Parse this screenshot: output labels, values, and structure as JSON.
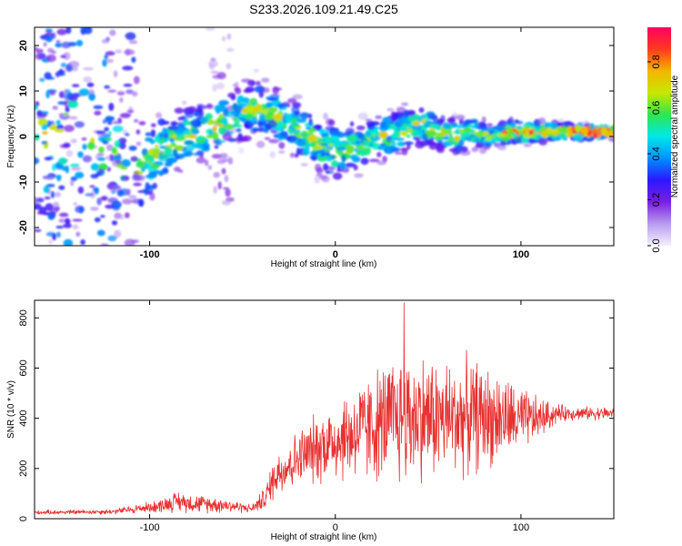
{
  "title": "S233.2026.109.21.49.C25",
  "chart_data": [
    {
      "type": "heatmap",
      "xlabel": "Height of straight line (km)",
      "ylabel": "Frequency (Hz)",
      "xlim": [
        -162,
        150
      ],
      "ylim": [
        -24,
        24
      ],
      "x_ticks": [
        -100,
        0,
        100
      ],
      "y_ticks": [
        -20,
        -10,
        0,
        10,
        20
      ],
      "colorbar": {
        "label": "Normalized spectral amplitude",
        "range": [
          0,
          0.95
        ],
        "ticks": [
          0.0,
          0.2,
          0.4,
          0.6,
          0.8
        ],
        "stops": [
          "#f4f0ff",
          "#b99cf0",
          "#7a1fe0",
          "#2b18ff",
          "#0090ff",
          "#00e8e8",
          "#2ee64e",
          "#c8e800",
          "#f4b400",
          "#ff3a1e",
          "#ff0060"
        ]
      },
      "ridge": {
        "x": [
          -162,
          -140,
          -120,
          -105,
          -95,
          -80,
          -65,
          -55,
          -45,
          -35,
          -25,
          -15,
          -5,
          5,
          15,
          25,
          35,
          45,
          55,
          65,
          75,
          85,
          95,
          105,
          115,
          125,
          140,
          150
        ],
        "freq_hz": [
          0,
          0,
          -3,
          -7,
          -3,
          0,
          2,
          4,
          6,
          5,
          3,
          0,
          -3,
          -3,
          -2,
          0,
          1,
          3,
          1,
          0,
          1,
          0,
          1,
          1,
          1,
          1,
          1,
          1
        ],
        "width_hz": [
          16,
          14,
          10,
          8,
          6,
          5,
          5,
          5,
          5,
          5,
          5,
          5,
          5,
          5,
          4,
          4,
          4,
          4,
          3,
          3,
          3,
          2,
          2,
          2,
          1.5,
          1.5,
          1.2,
          1.2
        ]
      }
    },
    {
      "type": "line",
      "xlabel": "Height of straight line (km)",
      "ylabel": "SNR (10 * v/v)",
      "xlim": [
        -162,
        150
      ],
      "ylim": [
        0,
        870
      ],
      "x_ticks": [
        -100,
        0,
        100
      ],
      "y_ticks": [
        0,
        200,
        400,
        600,
        800
      ],
      "series": [
        {
          "name": "SNR",
          "color": "#e83030",
          "envelope_x": [
            -162,
            -120,
            -95,
            -85,
            -75,
            -60,
            -45,
            -38,
            -32,
            -20,
            -5,
            10,
            25,
            35,
            45,
            60,
            75,
            90,
            100,
            110,
            120,
            130,
            150
          ],
          "envelope_mean": [
            25,
            28,
            50,
            70,
            60,
            55,
            40,
            80,
            180,
            240,
            300,
            340,
            380,
            400,
            410,
            400,
            410,
            400,
            390,
            400,
            420,
            420,
            420
          ],
          "envelope_amp": [
            8,
            10,
            25,
            40,
            35,
            30,
            15,
            45,
            90,
            110,
            150,
            190,
            230,
            260,
            250,
            230,
            220,
            170,
            130,
            80,
            35,
            25,
            25
          ],
          "peak_x": 37,
          "peak_value": 860
        }
      ]
    }
  ]
}
